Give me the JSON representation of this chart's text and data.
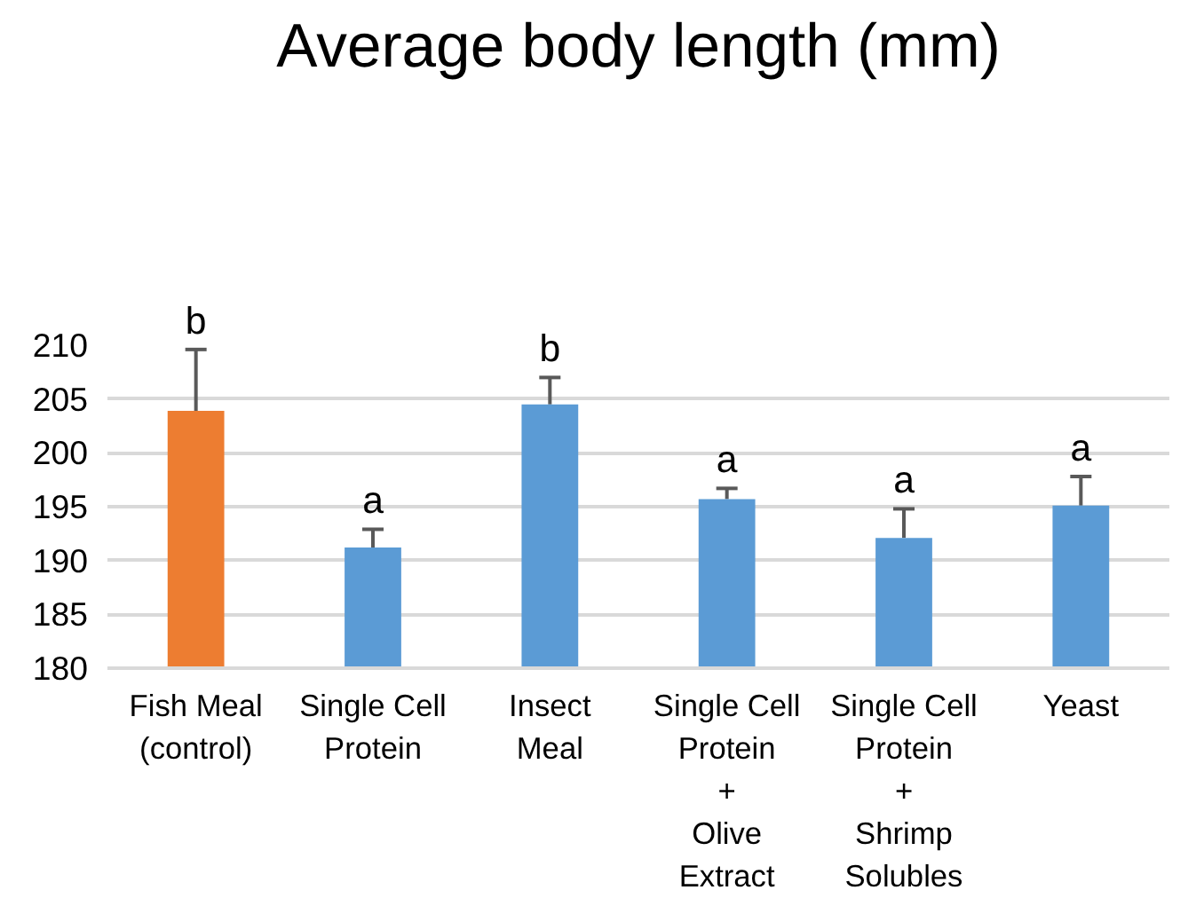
{
  "chart_data": {
    "type": "bar",
    "title": "Average body length (mm)",
    "categories": [
      "Fish Meal\n(control)",
      "Single Cell\nProtein",
      "Insect\nMeal",
      "Single Cell\nProtein\n+\nOlive\nExtract",
      "Single Cell\nProtein\n+\nShrimp\nSolubles",
      "Yeast"
    ],
    "values": [
      203.9,
      191.2,
      204.5,
      195.7,
      192.1,
      195.1
    ],
    "colors": [
      "#ed7d31",
      "#5b9bd5",
      "#5b9bd5",
      "#5b9bd5",
      "#5b9bd5",
      "#5b9bd5"
    ],
    "errors": [
      [
        203.9,
        209.6
      ],
      [
        191.2,
        192.9
      ],
      [
        204.5,
        207.0
      ],
      [
        195.7,
        196.7
      ],
      [
        192.1,
        194.8
      ],
      [
        195.1,
        197.8
      ]
    ],
    "ylim": [
      180,
      210
    ],
    "yticks": [
      180,
      185,
      190,
      195,
      200,
      205,
      210
    ],
    "grid": "y",
    "annotations": [
      {
        "text": "b",
        "x": "Fish Meal\n(control)",
        "y": 209.6
      },
      {
        "text": "a",
        "x": "Single Cell\nProtein",
        "y": 192.9
      },
      {
        "text": "b",
        "x": "Insect\nMeal",
        "y": 207.0
      },
      {
        "text": "a",
        "x": "Single Cell\nProtein\n+\nOlive\nExtract",
        "y": 196.7
      },
      {
        "text": "a",
        "x": "Single Cell\nProtein\n+\nShrimp\nSolubles",
        "y": 194.8
      },
      {
        "text": "a",
        "x": "Yeast",
        "y": 197.8
      }
    ]
  }
}
